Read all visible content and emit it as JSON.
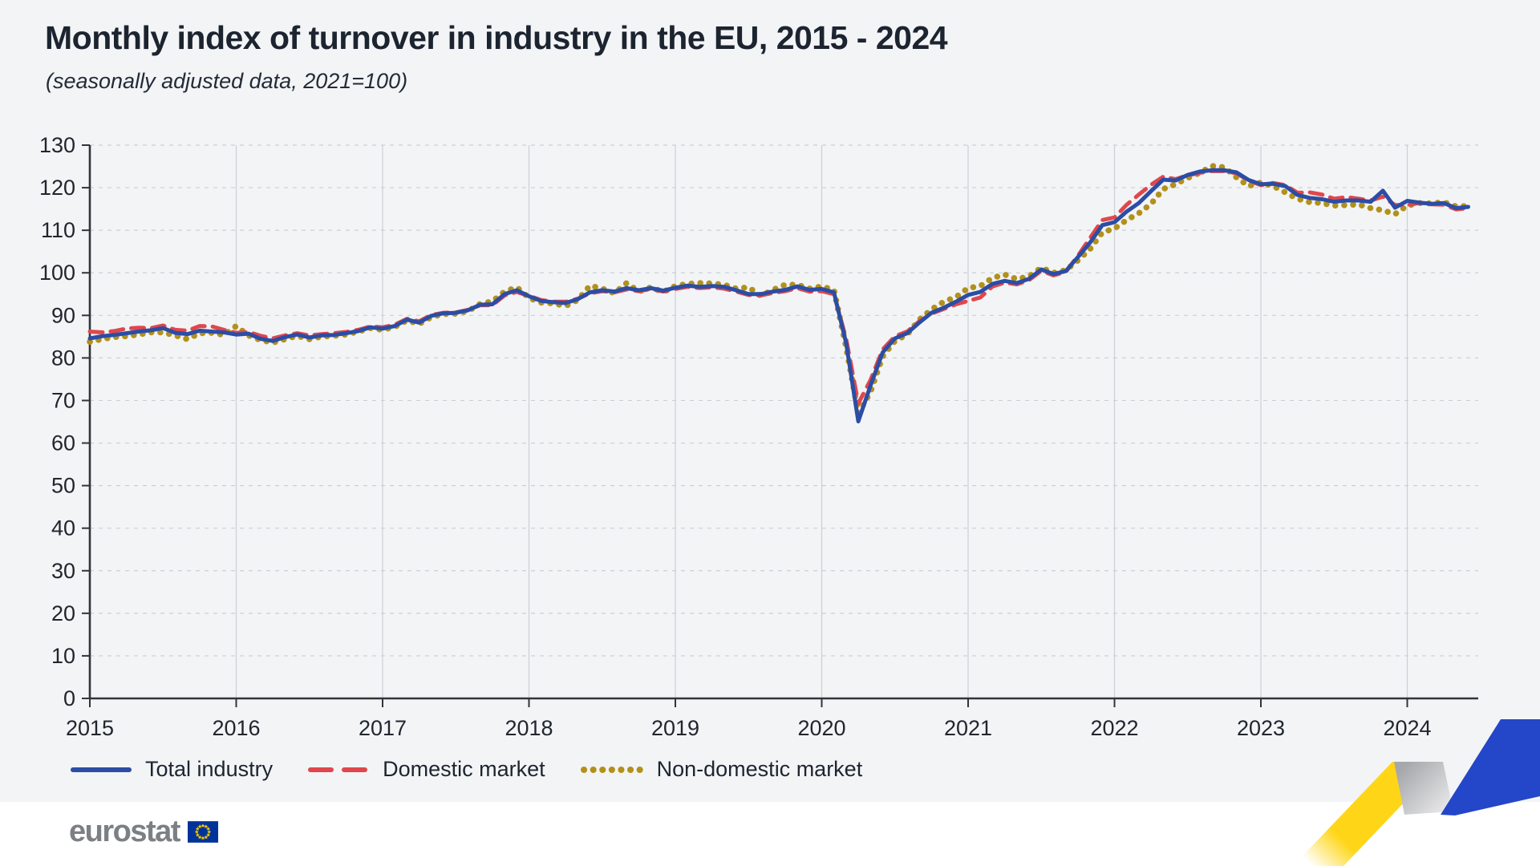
{
  "header": {
    "title": "Monthly index of turnover in industry in the EU, 2015 - 2024",
    "subtitle": "(seasonally adjusted data, 2021=100)"
  },
  "footer": {
    "logo_text": "eurostat"
  },
  "brand": {
    "ribbon_yellow": "#ffd617",
    "ribbon_blue": "#2446c8",
    "flag_blue": "#003399",
    "flag_star_yellow": "#ffcc00",
    "logo_gray": "#7c7f83"
  },
  "chart_data": {
    "type": "line",
    "title": "Monthly index of turnover in industry in the EU, 2015 - 2024",
    "subtitle": "(seasonally adjusted data, 2021=100)",
    "x_start": "2015-01",
    "x_end": "2024-06",
    "x_tick_labels": [
      "2015",
      "2016",
      "2017",
      "2018",
      "2019",
      "2020",
      "2021",
      "2022",
      "2023",
      "2024"
    ],
    "ylim": [
      0,
      130
    ],
    "ytick_step": 10,
    "grid": "on",
    "legend_position": "bottom",
    "series": [
      {
        "name": "Total industry",
        "color": "#2b4da5",
        "style": "solid",
        "values": [
          84.6,
          85.1,
          85.4,
          85.8,
          86.2,
          86.5,
          87.0,
          85.9,
          85.6,
          86.4,
          86.2,
          86.0,
          85.5,
          85.7,
          84.5,
          84.0,
          84.9,
          85.5,
          84.8,
          85.3,
          85.4,
          85.8,
          86.3,
          87.2,
          86.9,
          87.5,
          89.0,
          88.3,
          89.9,
          90.5,
          90.6,
          91.2,
          92.5,
          92.6,
          95.0,
          95.9,
          94.5,
          93.4,
          93.1,
          92.9,
          93.8,
          95.4,
          95.9,
          95.6,
          96.4,
          95.9,
          96.4,
          95.8,
          96.5,
          97.0,
          96.7,
          96.9,
          96.7,
          95.9,
          95.0,
          95.0,
          95.6,
          96.0,
          96.8,
          96.0,
          96.2,
          95.4,
          83.5,
          65.1,
          73.5,
          81.3,
          84.6,
          85.8,
          88.3,
          90.6,
          91.8,
          93.2,
          94.8,
          95.5,
          97.4,
          98.1,
          97.6,
          98.6,
          100.8,
          99.7,
          100.4,
          103.7,
          107.1,
          111.2,
          111.9,
          114.4,
          116.4,
          119.2,
          121.9,
          121.7,
          123.0,
          123.8,
          124.1,
          124.1,
          123.6,
          121.8,
          120.8,
          120.9,
          120.4,
          118.3,
          117.6,
          117.3,
          116.7,
          117.0,
          117.0,
          116.7,
          119.3,
          115.3,
          116.9,
          116.5,
          116.2,
          116.4,
          115.2,
          115.5
        ]
      },
      {
        "name": "Domestic market",
        "color": "#e0474c",
        "style": "dashed",
        "values": [
          86.2,
          86.0,
          86.3,
          86.9,
          87.1,
          87.0,
          87.6,
          86.6,
          86.4,
          87.5,
          87.4,
          86.6,
          85.9,
          86.1,
          85.2,
          84.6,
          85.3,
          85.8,
          85.3,
          85.6,
          85.8,
          86.1,
          86.6,
          87.4,
          87.2,
          87.8,
          89.2,
          88.6,
          90.1,
          90.6,
          90.7,
          91.3,
          92.4,
          92.4,
          94.7,
          95.5,
          94.6,
          93.6,
          93.2,
          93.2,
          93.9,
          95.2,
          95.7,
          95.4,
          96.1,
          95.7,
          96.2,
          95.6,
          96.2,
          96.7,
          96.4,
          96.6,
          96.3,
          95.6,
          94.8,
          94.7,
          95.3,
          95.7,
          96.4,
          95.6,
          95.7,
          95.0,
          84.5,
          69.3,
          74.8,
          82.0,
          85.1,
          86.2,
          88.6,
          90.4,
          91.5,
          92.6,
          93.4,
          94.2,
          96.8,
          97.7,
          97.3,
          98.3,
          100.5,
          99.4,
          100.2,
          104.0,
          108.2,
          112.4,
          113.0,
          116.0,
          118.4,
          120.7,
          122.6,
          122.0,
          122.9,
          123.5,
          123.9,
          123.9,
          123.4,
          121.7,
          120.6,
          121.1,
          120.6,
          118.8,
          118.9,
          118.4,
          117.4,
          117.8,
          117.4,
          117.0,
          117.9,
          115.9,
          115.9,
          116.4,
          116.1,
          116.0,
          114.9,
          115.2
        ]
      },
      {
        "name": "Non-domestic market",
        "color": "#b2911b",
        "style": "dotted",
        "values": [
          83.8,
          84.4,
          84.9,
          85.1,
          85.5,
          86.0,
          86.0,
          85.3,
          84.4,
          85.8,
          85.9,
          85.4,
          87.5,
          85.3,
          84.2,
          83.6,
          84.4,
          85.2,
          84.4,
          85.0,
          85.2,
          85.5,
          86.2,
          87.0,
          86.6,
          87.3,
          88.8,
          88.0,
          89.6,
          90.3,
          90.4,
          91.0,
          92.7,
          93.3,
          95.6,
          96.6,
          94.1,
          93.0,
          92.8,
          92.2,
          93.6,
          97.0,
          96.3,
          95.2,
          97.6,
          95.6,
          96.6,
          95.5,
          96.9,
          97.4,
          97.6,
          97.5,
          97.2,
          96.3,
          96.6,
          94.6,
          96.0,
          97.2,
          97.2,
          96.3,
          96.8,
          96.0,
          82.5,
          67.0,
          72.0,
          80.4,
          84.0,
          85.5,
          89.0,
          91.4,
          93.2,
          94.3,
          96.4,
          96.9,
          98.8,
          99.6,
          98.5,
          99.2,
          101.2,
          100.0,
          100.6,
          102.9,
          105.6,
          109.5,
          110.4,
          112.4,
          114.0,
          116.2,
          119.7,
          120.8,
          122.3,
          123.5,
          125.1,
          124.8,
          122.4,
          120.4,
          121.2,
          120.4,
          118.9,
          117.4,
          116.6,
          116.4,
          115.8,
          115.9,
          116.1,
          115.2,
          114.7,
          113.8,
          115.8,
          116.4,
          116.3,
          116.6,
          115.6,
          115.7
        ]
      }
    ]
  }
}
